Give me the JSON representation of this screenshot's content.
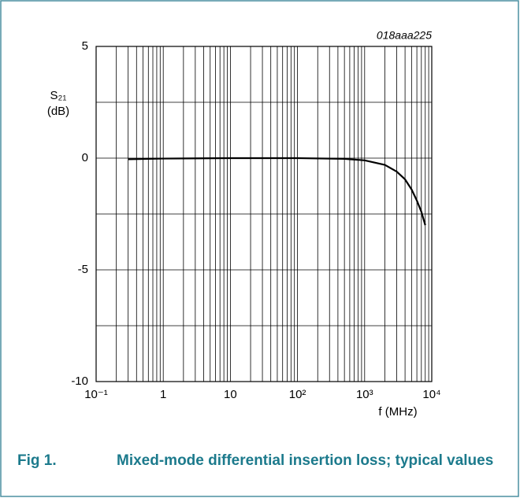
{
  "chart_data": {
    "type": "line",
    "annotation": "018aaa225",
    "ylabel": [
      "S₂₁",
      "(dB)"
    ],
    "xlabel": "f (MHz)",
    "figure_label": "Fig 1.",
    "caption": "Mixed-mode differential insertion loss; typical values",
    "x": [
      0.3,
      1,
      10,
      100,
      500,
      1000,
      2000,
      3000,
      4000,
      5000,
      6000,
      7000,
      8000
    ],
    "series": [
      {
        "color": "#000000",
        "values": [
          -0.05,
          -0.02,
          0,
          0,
          -0.03,
          -0.1,
          -0.3,
          -0.6,
          -0.95,
          -1.4,
          -1.9,
          -2.4,
          -3.0
        ]
      }
    ],
    "xscale": "log",
    "xlim": [
      0.1,
      10000
    ],
    "xticks": [
      {
        "value": 0.1,
        "label": "10⁻¹"
      },
      1,
      10,
      {
        "value": 100,
        "label": "10²"
      },
      {
        "value": 1000,
        "label": "10³"
      },
      {
        "value": 10000,
        "label": "10⁴"
      }
    ],
    "xminor": [
      0.2,
      0.3,
      0.4,
      0.5,
      0.6,
      0.7,
      0.8,
      0.9,
      2,
      3,
      4,
      5,
      6,
      7,
      8,
      9,
      20,
      30,
      40,
      50,
      60,
      70,
      80,
      90,
      200,
      300,
      400,
      500,
      600,
      700,
      800,
      900,
      2000,
      3000,
      4000,
      5000,
      6000,
      7000,
      8000,
      9000
    ],
    "ylim": [
      -10,
      5
    ],
    "yticks": [
      -10,
      -5,
      0,
      5
    ],
    "yminor": [
      -7.5,
      -2.5,
      2.5
    ],
    "grid": true
  }
}
